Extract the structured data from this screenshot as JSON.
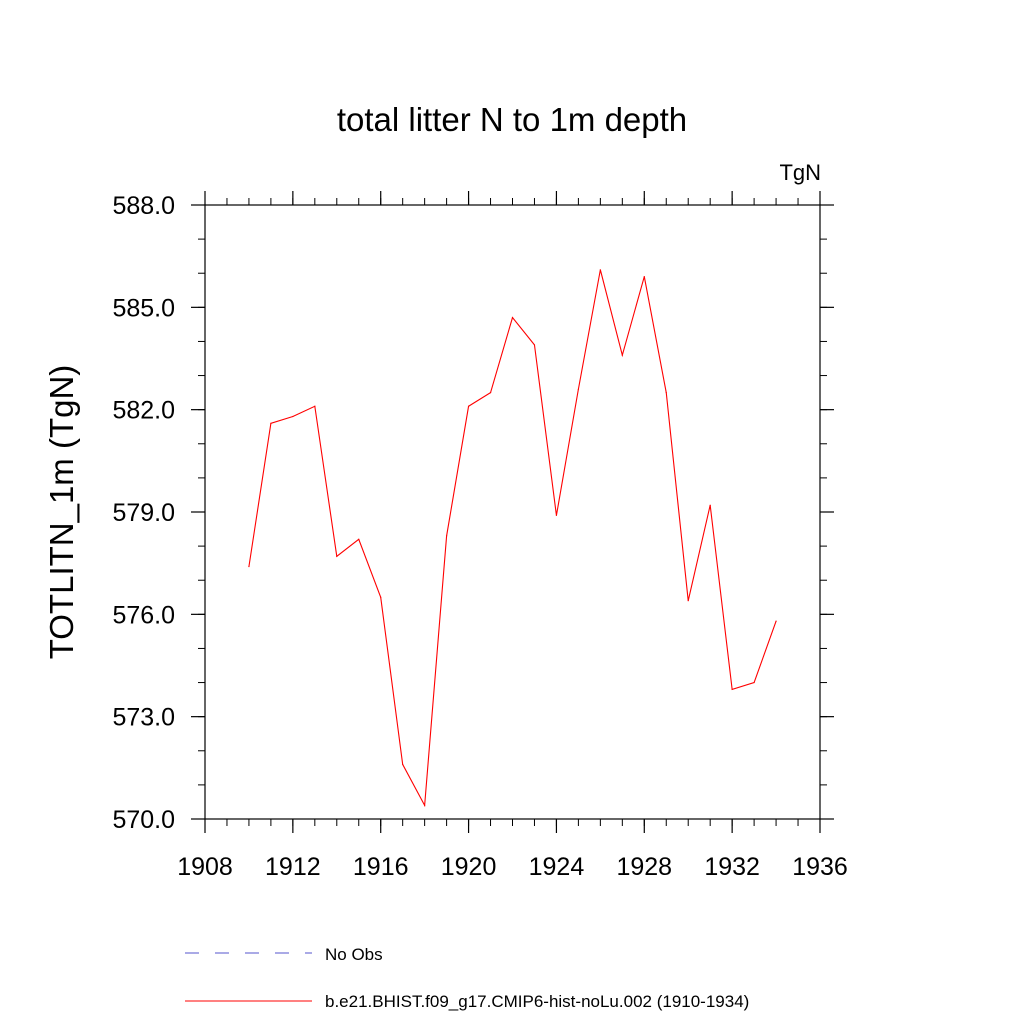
{
  "chart_data": {
    "type": "line",
    "title": "total litter N to 1m depth",
    "units_label": "TgN",
    "ylabel": "TOTLITN_1m  (TgN)",
    "xlabel": "",
    "xlim": [
      1908,
      1936
    ],
    "ylim": [
      570.0,
      588.0
    ],
    "x_ticks": [
      1908,
      1912,
      1916,
      1920,
      1924,
      1928,
      1932,
      1936
    ],
    "y_ticks": [
      "570.0",
      "573.0",
      "576.0",
      "579.0",
      "582.0",
      "585.0",
      "588.0"
    ],
    "x_minor_step": 1,
    "y_minor_step": 1,
    "grid": false,
    "legend_placement": "bottom",
    "series": [
      {
        "name": "b.e21.BHIST.f09_g17.CMIP6-hist-noLu.002 (1910-1934)",
        "color": "#ff0000",
        "style": "solid",
        "x": [
          1910,
          1911,
          1912,
          1913,
          1914,
          1915,
          1916,
          1917,
          1918,
          1919,
          1920,
          1921,
          1922,
          1923,
          1924,
          1925,
          1926,
          1927,
          1928,
          1929,
          1930,
          1931,
          1932,
          1933,
          1934
        ],
        "y": [
          577.4,
          581.6,
          581.8,
          582.1,
          577.7,
          578.2,
          576.5,
          571.6,
          570.4,
          578.3,
          582.1,
          582.5,
          584.7,
          583.9,
          578.9,
          582.6,
          586.1,
          583.6,
          585.9,
          582.5,
          576.4,
          579.2,
          573.8,
          574.0,
          575.8
        ]
      }
    ],
    "legend": [
      {
        "label": "No Obs",
        "color": "#5555cc",
        "style": "dashed"
      },
      {
        "label": "b.e21.BHIST.f09_g17.CMIP6-hist-noLu.002 (1910-1934)",
        "color": "#ff0000",
        "style": "solid"
      }
    ]
  }
}
